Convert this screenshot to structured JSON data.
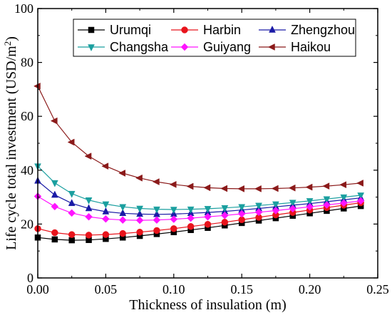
{
  "chart_data": {
    "type": "line",
    "xlabel": "Thickness of insulation (m)",
    "ylabel": "Life cycle total investment  (USD/m²)",
    "xlim": [
      0,
      0.25
    ],
    "ylim": [
      0,
      100
    ],
    "x_ticks": [
      "0.00",
      "0.05",
      "0.10",
      "0.15",
      "0.20",
      "0.25"
    ],
    "y_ticks": [
      "0",
      "20",
      "40",
      "60",
      "80",
      "100"
    ],
    "grid": false,
    "legend_position": "top",
    "x": [
      0.0,
      0.0125,
      0.025,
      0.0375,
      0.05,
      0.0625,
      0.075,
      0.0875,
      0.1,
      0.1125,
      0.125,
      0.1375,
      0.15,
      0.1625,
      0.175,
      0.1875,
      0.2,
      0.2125,
      0.225,
      0.2375
    ],
    "series": [
      {
        "name": "Urumqi",
        "color": "#000000",
        "marker": "square",
        "values": [
          15.0,
          14.3,
          14.0,
          14.1,
          14.5,
          15.0,
          15.6,
          16.3,
          17.0,
          17.8,
          18.6,
          19.5,
          20.4,
          21.3,
          22.2,
          23.1,
          24.0,
          24.9,
          25.8,
          26.7
        ]
      },
      {
        "name": "Harbin",
        "color": "#e8141c",
        "marker": "circle",
        "values": [
          18.3,
          16.8,
          16.1,
          15.9,
          16.1,
          16.5,
          17.0,
          17.6,
          18.3,
          19.1,
          19.9,
          20.7,
          21.6,
          22.5,
          23.4,
          24.3,
          25.2,
          26.1,
          27.0,
          27.9
        ]
      },
      {
        "name": "Zhengzhou",
        "color": "#1a1aa6",
        "marker": "triangle-up",
        "values": [
          36.0,
          30.8,
          27.7,
          25.8,
          24.6,
          24.0,
          23.7,
          23.6,
          23.7,
          24.0,
          24.3,
          24.7,
          25.2,
          25.8,
          26.4,
          27.0,
          27.6,
          28.3,
          29.0,
          29.7
        ]
      },
      {
        "name": "Changsha",
        "color": "#1a9f9f",
        "marker": "triangle-down",
        "values": [
          41.5,
          35.3,
          31.3,
          28.9,
          27.4,
          26.4,
          25.8,
          25.5,
          25.4,
          25.5,
          25.7,
          26.0,
          26.4,
          26.9,
          27.4,
          28.0,
          28.6,
          29.3,
          30.0,
          30.7
        ]
      },
      {
        "name": "Guiyang",
        "color": "#ff14ff",
        "marker": "diamond",
        "values": [
          30.3,
          26.5,
          24.1,
          22.7,
          21.9,
          21.5,
          21.4,
          21.5,
          21.8,
          22.2,
          22.7,
          23.2,
          23.8,
          24.4,
          25.0,
          25.7,
          26.4,
          27.1,
          27.8,
          28.6
        ]
      },
      {
        "name": "Haikou",
        "color": "#8b1a1a",
        "marker": "triangle-left",
        "values": [
          71.2,
          58.3,
          50.4,
          45.2,
          41.5,
          38.9,
          37.1,
          35.7,
          34.7,
          34.0,
          33.5,
          33.2,
          33.1,
          33.1,
          33.2,
          33.4,
          33.7,
          34.1,
          34.6,
          35.2
        ]
      }
    ]
  }
}
